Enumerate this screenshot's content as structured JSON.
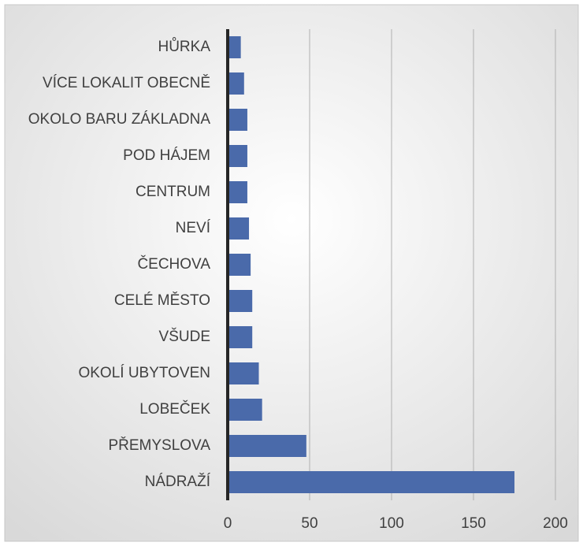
{
  "chart_data": {
    "type": "bar",
    "orientation": "horizontal",
    "categories": [
      "HŮRKA",
      "VÍCE LOKALIT OBECNĚ",
      "OKOLO BARU ZÁKLADNA",
      "POD HÁJEM",
      "CENTRUM",
      "NEVÍ",
      "ČECHOVA",
      "CELÉ MĚSTO",
      "VŠUDE",
      "OKOLÍ UBYTOVEN",
      "LOBEČEK",
      "PŘEMYSLOVA",
      "NÁDRAŽÍ"
    ],
    "values": [
      8,
      10,
      12,
      12,
      12,
      13,
      14,
      15,
      15,
      19,
      21,
      48,
      175
    ],
    "color": "#4a6aaa",
    "xlim": [
      0,
      200
    ],
    "xticks": [
      0,
      50,
      100,
      150,
      200
    ],
    "grid": true
  }
}
